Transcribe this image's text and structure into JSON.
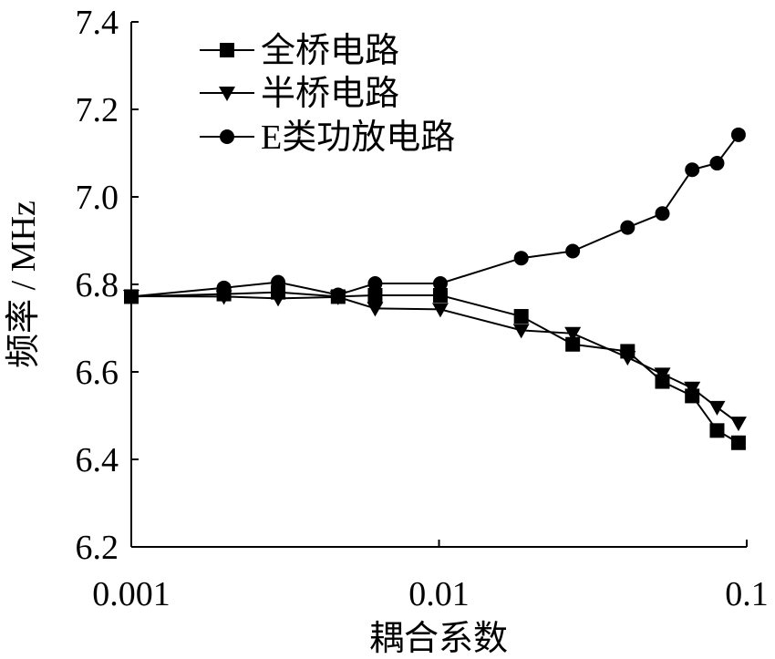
{
  "chart_data": {
    "type": "line",
    "xlabel": "耦合系数",
    "ylabel": "频率 / MHz",
    "xscale": "log",
    "xlim": [
      0.001,
      0.1
    ],
    "ylim": [
      6.2,
      7.4
    ],
    "xticks": [
      "0.001",
      "0.01",
      "0.1"
    ],
    "yticks": [
      "6.2",
      "6.4",
      "6.6",
      "6.8",
      "7.0",
      "7.2",
      "7.4"
    ],
    "grid": false,
    "legend_position": "top-left",
    "series": [
      {
        "name": "全桥电路",
        "marker": "square",
        "x": [
          0.001,
          0.002,
          0.003,
          0.0047,
          0.0062,
          0.0101,
          0.0185,
          0.0272,
          0.041,
          0.0532,
          0.0665,
          0.0801,
          0.094
        ],
        "y": [
          6.772,
          6.778,
          6.782,
          6.772,
          6.775,
          6.775,
          6.727,
          6.663,
          6.647,
          6.578,
          6.545,
          6.466,
          6.438
        ]
      },
      {
        "name": "半桥电路",
        "marker": "triangle-down",
        "x": [
          0.001,
          0.002,
          0.003,
          0.0047,
          0.0062,
          0.0101,
          0.0185,
          0.0272,
          0.041,
          0.0532,
          0.0665,
          0.0801,
          0.094
        ],
        "y": [
          6.773,
          6.772,
          6.768,
          6.771,
          6.745,
          6.743,
          6.695,
          6.688,
          6.633,
          6.595,
          6.563,
          6.519,
          6.483
        ]
      },
      {
        "name": "E类功放电路",
        "marker": "circle",
        "x": [
          0.001,
          0.002,
          0.003,
          0.0047,
          0.0062,
          0.0101,
          0.0185,
          0.0272,
          0.041,
          0.0532,
          0.0665,
          0.0801,
          0.094
        ],
        "y": [
          6.772,
          6.792,
          6.805,
          6.776,
          6.802,
          6.802,
          6.86,
          6.876,
          6.93,
          6.962,
          7.062,
          7.077,
          7.142
        ]
      }
    ]
  }
}
